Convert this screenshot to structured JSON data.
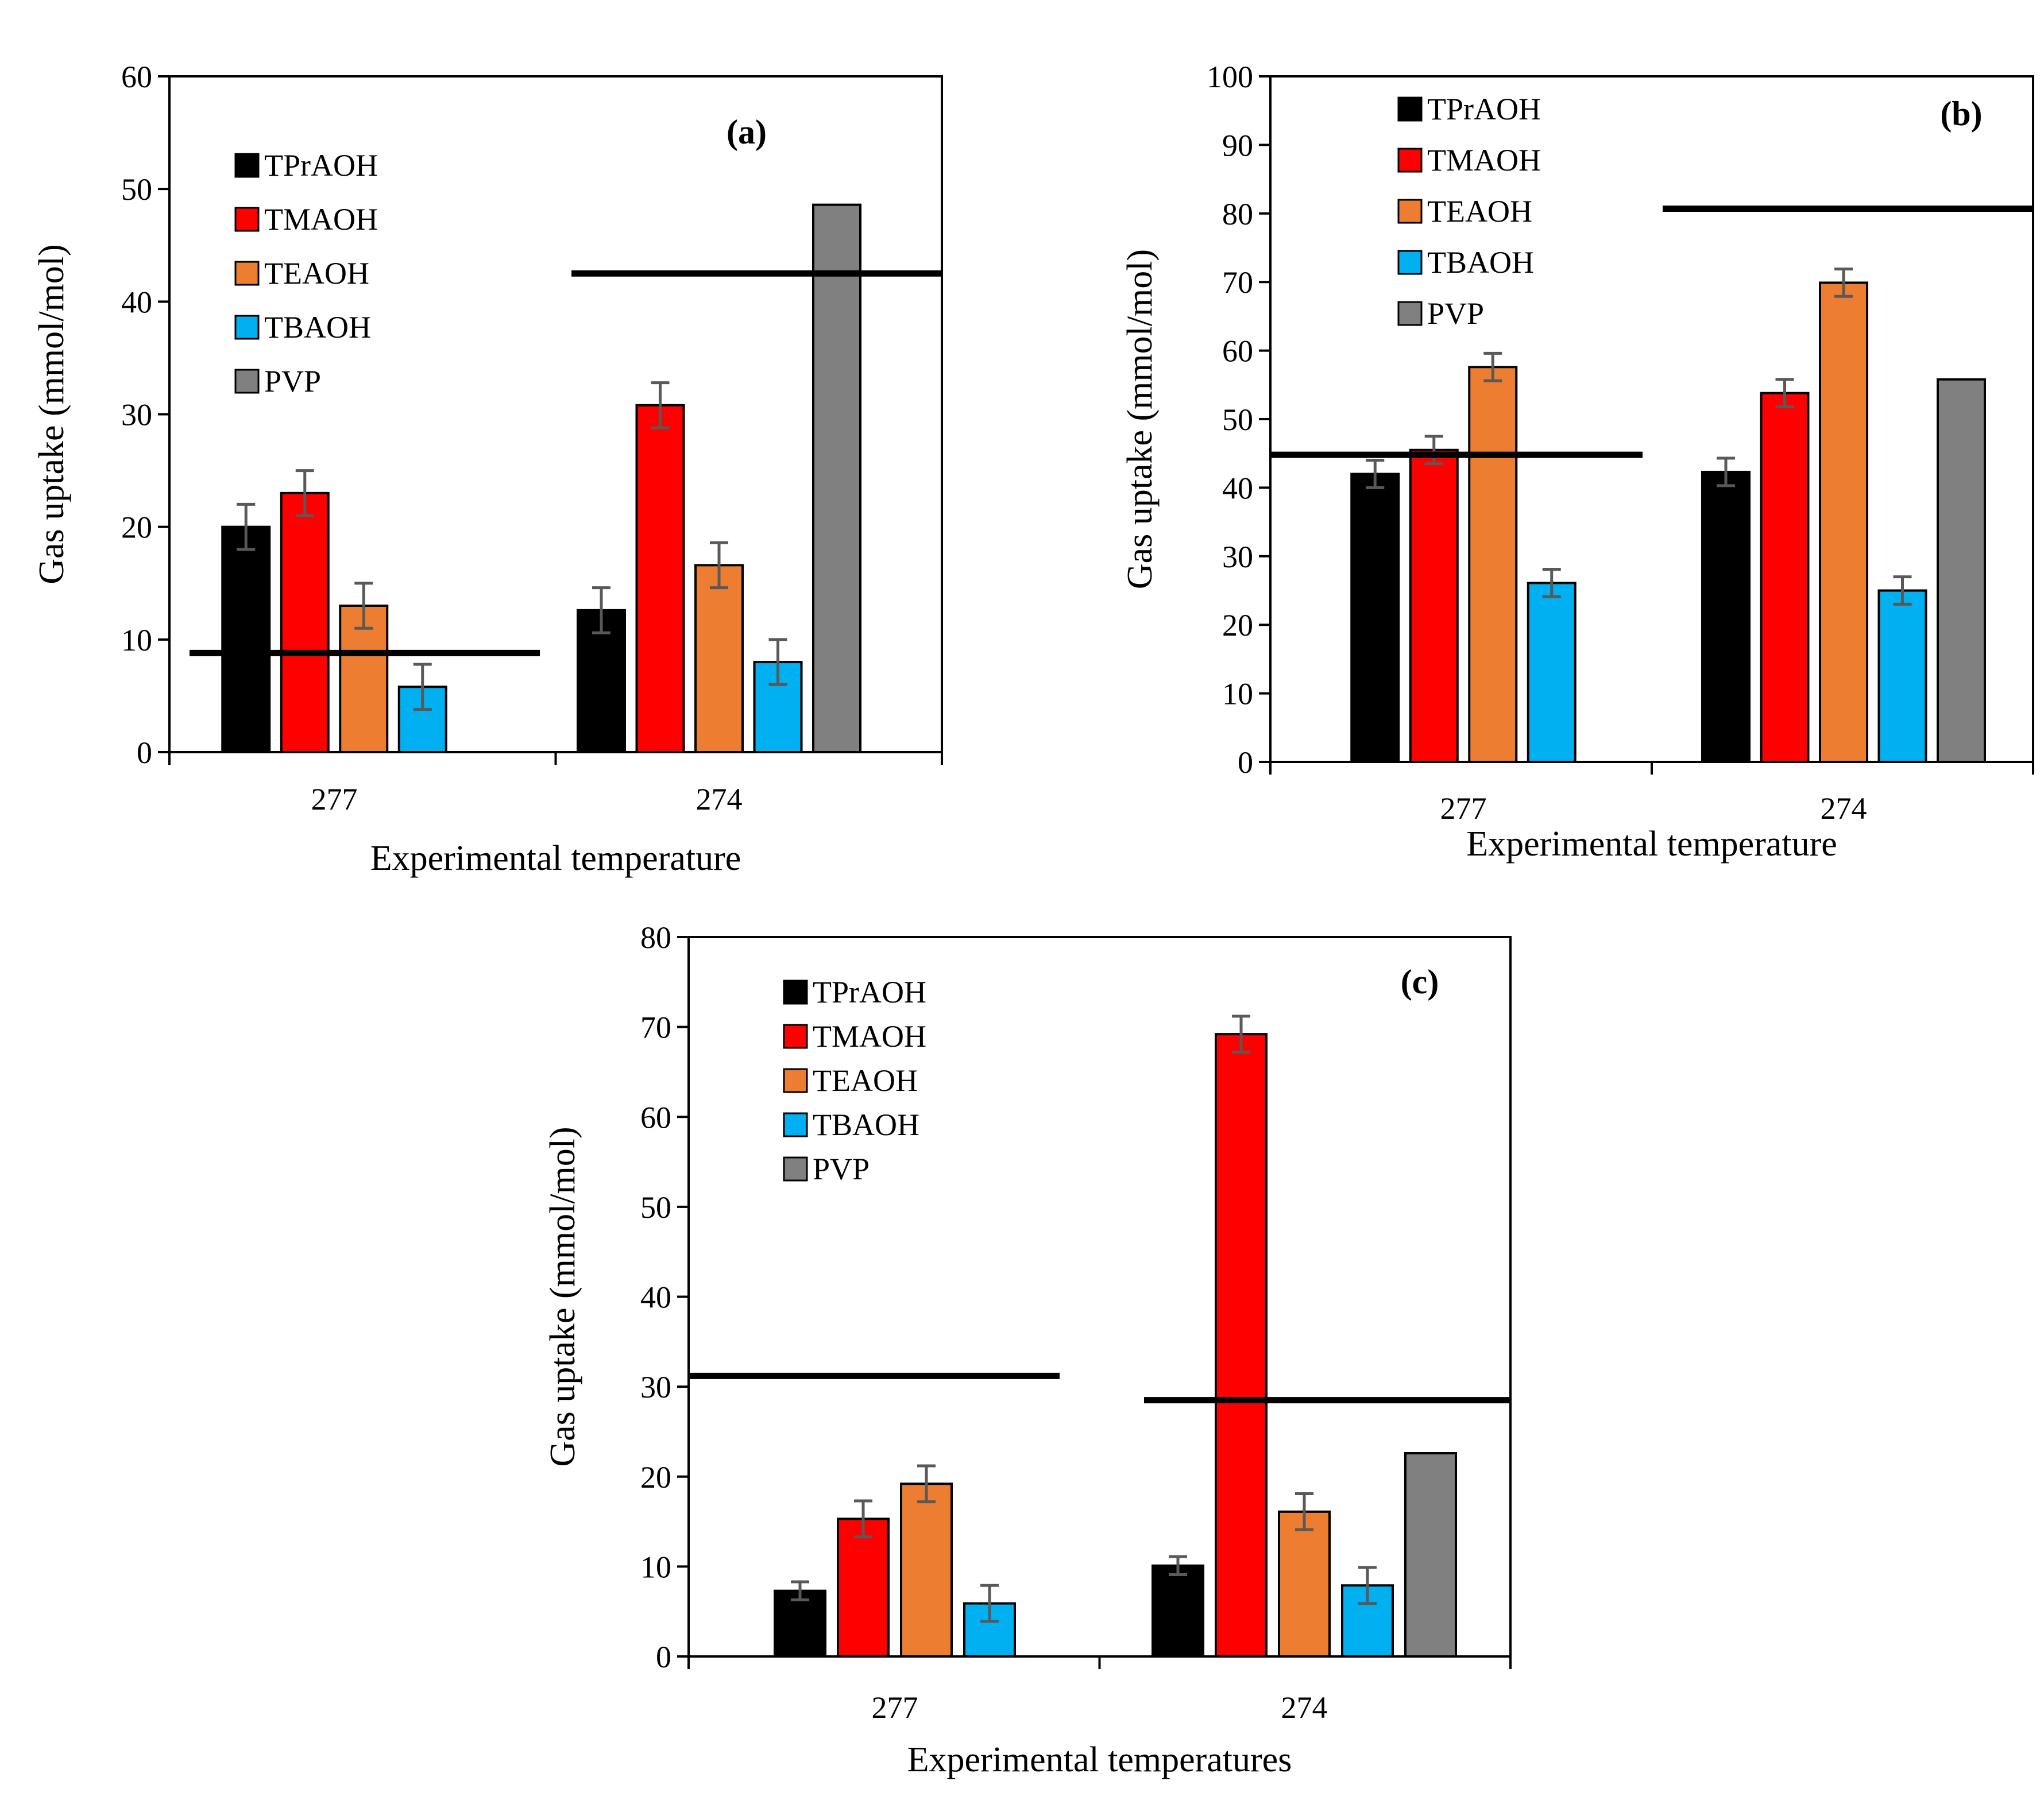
{
  "colors": {
    "TPrAOH": "#000000",
    "TMAOH": "#ff0000",
    "TEAOH": "#ed7d31",
    "TBAOH": "#00b0f0",
    "PVP": "#808080",
    "error_bar": "#595959"
  },
  "chart_data": [
    {
      "type": "bar",
      "panel_label": "(a)",
      "panel_letter": "a",
      "categories": [
        "277",
        "274"
      ],
      "xlabel": "Experimental temperature",
      "ylabel": "Gas uptake (mmol/mol)",
      "ylim": [
        0,
        60
      ],
      "ytick_step": 10,
      "yticks": [
        "0",
        "10",
        "20",
        "30",
        "40",
        "50",
        "60"
      ],
      "series": [
        {
          "name": "TPrAOH",
          "values": [
            20.0,
            12.6
          ],
          "errors": [
            2.0,
            2.0
          ]
        },
        {
          "name": "TMAOH",
          "values": [
            23.0,
            30.8
          ],
          "errors": [
            2.0,
            2.0
          ]
        },
        {
          "name": "TEAOH",
          "values": [
            13.0,
            16.6
          ],
          "errors": [
            2.0,
            2.0
          ]
        },
        {
          "name": "TBAOH",
          "values": [
            5.8,
            8.0
          ],
          "errors": [
            2.0,
            2.0
          ]
        },
        {
          "name": "PVP",
          "values": [
            null,
            48.6
          ],
          "errors": [
            null,
            null
          ]
        }
      ],
      "reference_lines": [
        {
          "category": "277",
          "value": 8.8
        },
        {
          "category": "274",
          "value": 42.5
        }
      ],
      "legend": [
        "TPrAOH",
        "TMAOH",
        "TEAOH",
        "TBAOH",
        "PVP"
      ]
    },
    {
      "type": "bar",
      "panel_label": "(b)",
      "panel_letter": "b",
      "categories": [
        "277",
        "274"
      ],
      "xlabel": "Experimental temperature",
      "ylabel": "Gas uptake (mmol/mol)",
      "ylim": [
        0,
        100
      ],
      "ytick_step": 10,
      "yticks": [
        "0",
        "10",
        "20",
        "30",
        "40",
        "50",
        "60",
        "70",
        "80",
        "90",
        "100"
      ],
      "series": [
        {
          "name": "TPrAOH",
          "values": [
            42.0,
            42.3
          ],
          "errors": [
            2.0,
            2.0
          ]
        },
        {
          "name": "TMAOH",
          "values": [
            45.5,
            53.8
          ],
          "errors": [
            2.0,
            2.0
          ]
        },
        {
          "name": "TEAOH",
          "values": [
            57.6,
            69.9
          ],
          "errors": [
            2.0,
            2.0
          ]
        },
        {
          "name": "TBAOH",
          "values": [
            26.1,
            25.0
          ],
          "errors": [
            2.0,
            2.0
          ]
        },
        {
          "name": "PVP",
          "values": [
            null,
            55.8
          ],
          "errors": [
            null,
            null
          ]
        }
      ],
      "reference_lines": [
        {
          "category": "277",
          "value": 44.8
        },
        {
          "category": "274",
          "value": 80.7
        }
      ],
      "legend": [
        "TPrAOH",
        "TMAOH",
        "TEAOH",
        "TBAOH",
        "PVP"
      ]
    },
    {
      "type": "bar",
      "panel_label": "(c)",
      "panel_letter": "c",
      "categories": [
        "277",
        "274"
      ],
      "xlabel": "Experimental temperatures",
      "ylabel": "Gas uptake (mmol/mol)",
      "ylim": [
        0,
        80
      ],
      "ytick_step": 10,
      "yticks": [
        "0",
        "10",
        "20",
        "30",
        "40",
        "50",
        "60",
        "70",
        "80"
      ],
      "series": [
        {
          "name": "TPrAOH",
          "values": [
            7.3,
            10.1
          ],
          "errors": [
            1.0,
            1.0
          ]
        },
        {
          "name": "TMAOH",
          "values": [
            15.3,
            69.2
          ],
          "errors": [
            2.0,
            2.0
          ]
        },
        {
          "name": "TEAOH",
          "values": [
            19.2,
            16.1
          ],
          "errors": [
            2.0,
            2.0
          ]
        },
        {
          "name": "TBAOH",
          "values": [
            5.9,
            7.9
          ],
          "errors": [
            2.0,
            2.0
          ]
        },
        {
          "name": "PVP",
          "values": [
            null,
            22.6
          ],
          "errors": [
            null,
            null
          ]
        }
      ],
      "reference_lines": [
        {
          "category": "277",
          "value": 31.2
        },
        {
          "category": "274",
          "value": 28.5
        }
      ],
      "legend": [
        "TPrAOH",
        "TMAOH",
        "TEAOH",
        "TBAOH",
        "PVP"
      ]
    }
  ]
}
